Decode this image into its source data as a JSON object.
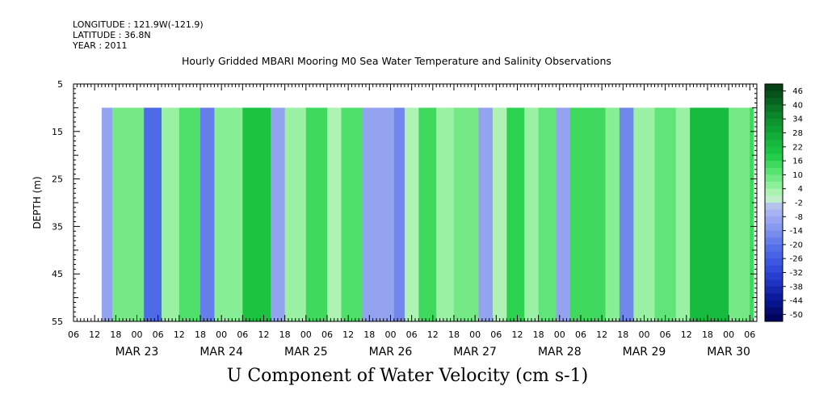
{
  "header": {
    "longitude": "LONGITUDE : 121.9W(-121.9)",
    "latitude": "LATITUDE : 36.8N",
    "year": "YEAR : 2011"
  },
  "chart_data": {
    "type": "heatmap",
    "title": "Hourly Gridded MBARI Mooring M0 Sea Water Temperature and Salinity Observations",
    "bottom_title": "U Component of Water Velocity (cm s-1)",
    "ylabel": "DEPTH (m)",
    "ylim": [
      5,
      55
    ],
    "y_inverted": true,
    "y_ticks": [
      "5",
      "15",
      "25",
      "35",
      "45",
      "55"
    ],
    "xlim": [
      "2011-03-22T06:00",
      "2011-03-30T08:00"
    ],
    "x_hour_ticks": [
      "06",
      "12",
      "18",
      "00",
      "06",
      "12",
      "18",
      "00",
      "06",
      "12",
      "18",
      "00",
      "06",
      "12",
      "18",
      "00",
      "06",
      "12",
      "18",
      "00",
      "06",
      "12",
      "18",
      "00",
      "06",
      "12",
      "18",
      "00",
      "06",
      "12",
      "18",
      "00",
      "06"
    ],
    "x_day_labels": [
      "MAR 23",
      "MAR 24",
      "MAR 25",
      "MAR 26",
      "MAR 27",
      "MAR 28",
      "MAR 29",
      "MAR 30"
    ],
    "data_depth_range": [
      10,
      55
    ],
    "data_start": "2011-03-22T14:00",
    "colorbar": {
      "labels": [
        "46",
        "40",
        "34",
        "28",
        "22",
        "16",
        "10",
        "4",
        "-2",
        "-8",
        "-14",
        "-20",
        "-26",
        "-32",
        "-38",
        "-44",
        "-50"
      ],
      "range": [
        -50,
        50
      ]
    },
    "bands": [
      {
        "start": "2011-03-22T14:00",
        "u": -8
      },
      {
        "start": "2011-03-22T17:00",
        "u": 10
      },
      {
        "start": "2011-03-23T02:00",
        "u": -20
      },
      {
        "start": "2011-03-23T07:00",
        "u": 6
      },
      {
        "start": "2011-03-23T12:00",
        "u": 14
      },
      {
        "start": "2011-03-23T18:00",
        "u": -16
      },
      {
        "start": "2011-03-23T22:00",
        "u": 8
      },
      {
        "start": "2011-03-24T06:00",
        "u": 22
      },
      {
        "start": "2011-03-24T14:00",
        "u": -8
      },
      {
        "start": "2011-03-24T18:00",
        "u": 6
      },
      {
        "start": "2011-03-25T00:00",
        "u": 16
      },
      {
        "start": "2011-03-25T06:00",
        "u": 4
      },
      {
        "start": "2011-03-25T10:00",
        "u": 14
      },
      {
        "start": "2011-03-25T16:00",
        "u": -8
      },
      {
        "start": "2011-03-26T01:00",
        "u": -14
      },
      {
        "start": "2011-03-26T04:00",
        "u": 4
      },
      {
        "start": "2011-03-26T08:00",
        "u": 16
      },
      {
        "start": "2011-03-26T13:00",
        "u": 6
      },
      {
        "start": "2011-03-26T18:00",
        "u": 10
      },
      {
        "start": "2011-03-27T01:00",
        "u": -8
      },
      {
        "start": "2011-03-27T05:00",
        "u": 4
      },
      {
        "start": "2011-03-27T09:00",
        "u": 18
      },
      {
        "start": "2011-03-27T14:00",
        "u": 6
      },
      {
        "start": "2011-03-27T18:00",
        "u": 12
      },
      {
        "start": "2011-03-27T23:00",
        "u": -8
      },
      {
        "start": "2011-03-28T03:00",
        "u": 16
      },
      {
        "start": "2011-03-28T13:00",
        "u": 8
      },
      {
        "start": "2011-03-28T17:00",
        "u": -14
      },
      {
        "start": "2011-03-28T21:00",
        "u": 6
      },
      {
        "start": "2011-03-29T03:00",
        "u": 12
      },
      {
        "start": "2011-03-29T09:00",
        "u": 6
      },
      {
        "start": "2011-03-29T13:00",
        "u": 24
      },
      {
        "start": "2011-03-30T00:00",
        "u": 10
      },
      {
        "start": "2011-03-30T06:00",
        "u": 16
      }
    ],
    "data_end": "2011-03-30T07:00"
  }
}
